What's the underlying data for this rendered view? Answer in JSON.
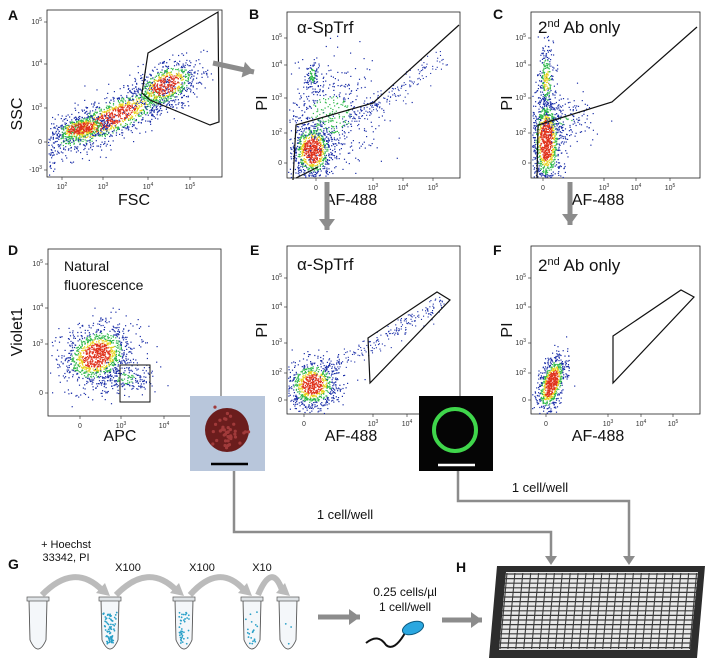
{
  "panels": {
    "A": {
      "letter": "A",
      "ylabel": "SSC",
      "xlabel": "FSC",
      "yticks": [
        "10^5",
        "10^4",
        "10^3",
        "0",
        "-10^3"
      ],
      "xticks": [
        "10^2",
        "10^3",
        "10^4",
        "10^5"
      ]
    },
    "B": {
      "letter": "B",
      "title": "α-SpTrf",
      "ylabel": "PI",
      "xlabel": "AF-488",
      "yticks": [
        "10^5",
        "10^4",
        "10^3",
        "10^2",
        "0"
      ],
      "xticks": [
        "0",
        "10^3",
        "10^4",
        "10^5"
      ]
    },
    "C": {
      "letter": "C",
      "title_main": "2",
      "title_sup": "nd",
      "title_rest": " Ab only",
      "ylabel": "PI",
      "xlabel": "AF-488",
      "yticks": [
        "10^5",
        "10^4",
        "10^3",
        "10^2",
        "0"
      ],
      "xticks": [
        "0",
        "10^3",
        "10^4",
        "10^5"
      ]
    },
    "D": {
      "letter": "D",
      "title_line1": "Natural",
      "title_line2": "fluorescence",
      "ylabel": "Violet1",
      "xlabel": "APC",
      "yticks": [
        "10^5",
        "10^4",
        "10^3",
        "0"
      ],
      "xticks": [
        "0",
        "10^3",
        "10^4"
      ]
    },
    "E": {
      "letter": "E",
      "title": "α-SpTrf",
      "ylabel": "PI",
      "xlabel": "AF-488",
      "yticks": [
        "10^5",
        "10^4",
        "10^3",
        "10^2",
        "0"
      ],
      "xticks": [
        "0",
        "10^3",
        "10^4",
        "10^5"
      ]
    },
    "F": {
      "letter": "F",
      "title_main": "2",
      "title_sup": "nd",
      "title_rest": " Ab only",
      "ylabel": "PI",
      "xlabel": "AF-488",
      "yticks": [
        "10^5",
        "10^4",
        "10^3",
        "10^2",
        "0"
      ],
      "xticks": [
        "0",
        "10^3",
        "10^4",
        "10^5"
      ]
    },
    "G": {
      "letter": "G"
    },
    "H": {
      "letter": "H"
    }
  },
  "workflow": {
    "label_left": "1 cell/well",
    "label_right": "1 cell/well",
    "stain_line1": "+ Hoechst",
    "stain_line2": "33342, PI",
    "dilutions": [
      "X100",
      "X100",
      "X10"
    ],
    "conc_line1": "0.25 cells/µl",
    "conc_line2": "1 cell/well"
  },
  "colors": {
    "axis": "#222222",
    "arrow": "#8c8c8c",
    "gate": "#111111",
    "density_low": "#1a2ea8",
    "density_mid": "#2fb84a",
    "density_high": "#e8d21a",
    "density_peak": "#e0321c",
    "green_cell": "#3fd64b",
    "red_cell": "#6b1d1d",
    "pipette": "#2aa7e0"
  }
}
